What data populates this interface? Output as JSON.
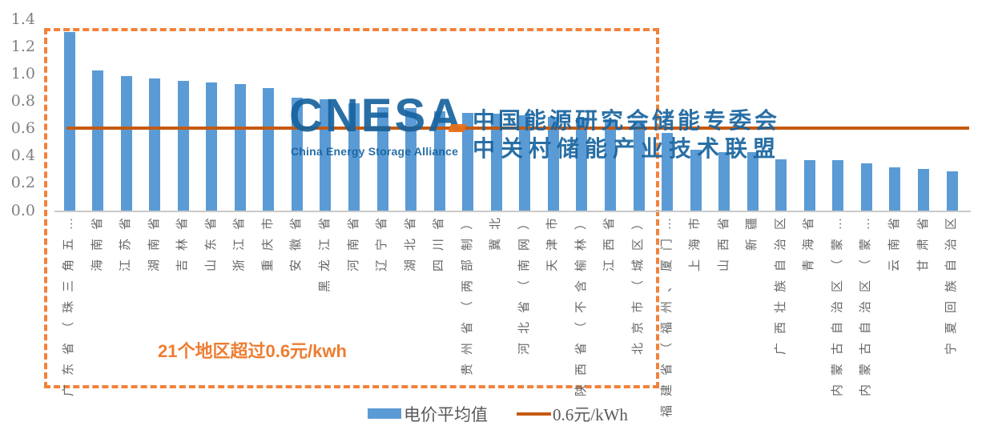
{
  "chart_data": {
    "type": "bar",
    "title": "",
    "xlabel": "",
    "ylabel": "",
    "ylim": [
      0,
      1.4
    ],
    "yticks": [
      0.0,
      0.2,
      0.4,
      0.6,
      0.8,
      1.0,
      1.2,
      1.4
    ],
    "grid": false,
    "legend_position": "bottom",
    "bar_color": "#5B9BD5",
    "categories": [
      "广东省（珠三角五…",
      "海南省",
      "江苏省",
      "湖南省",
      "吉林省",
      "山东省",
      "浙江省",
      "重庆市",
      "安徽省",
      "黑龙江省",
      "河南省",
      "辽宁省",
      "湖北省",
      "四川省",
      "贵州省（两部制）",
      "冀北",
      "河北省（南网）",
      "天津市",
      "陕西省（不含榆林）",
      "江西省",
      "北京市（城区）",
      "福建省（福州、厦门…",
      "上海市",
      "山西省",
      "新疆",
      "广西壮族自治区",
      "青海省",
      "内蒙古自治区（蒙…",
      "内蒙古自治区（蒙…",
      "云南省",
      "甘肃省",
      "宁夏回族自治区"
    ],
    "values": [
      1.31,
      1.03,
      0.99,
      0.97,
      0.95,
      0.94,
      0.93,
      0.9,
      0.83,
      0.82,
      0.79,
      0.76,
      0.75,
      0.73,
      0.72,
      0.71,
      0.7,
      0.69,
      0.68,
      0.67,
      0.65,
      0.57,
      0.45,
      0.43,
      0.43,
      0.38,
      0.37,
      0.37,
      0.35,
      0.32,
      0.31,
      0.29
    ],
    "series_name": "电价平均值",
    "reference_line": {
      "value": 0.6,
      "label": "0.6元/kWh",
      "color": "#C55A11"
    },
    "highlight_box": {
      "first_n_bars": 21,
      "style": "dashed",
      "color": "#F2823C",
      "note": "21个地区超过0.6元/kwh"
    }
  },
  "annotation": {
    "text": "21个地区超过0.6元/kwh",
    "color": "#ED7D31"
  },
  "legend": {
    "items": [
      {
        "label": "电价平均值",
        "swatch": "bar",
        "color": "#5B9BD5"
      },
      {
        "label": "0.6元/kWh",
        "swatch": "line",
        "color": "#C55A11"
      }
    ]
  },
  "watermark": {
    "logo": "CNESA",
    "logo_sub": "China Energy Storage Alliance",
    "cn_line1": "中国能源研究会储能专委会",
    "cn_line2": "中关村储能产业技术联盟"
  },
  "colors": {
    "bar": "#5B9BD5",
    "reference_line": "#C55A11",
    "dashed_box": "#F2823C",
    "annotation": "#ED7D31",
    "watermark": "#17639E",
    "tick_text": "#7F7F7F",
    "category_text": "#666666",
    "axis_line": "#C9C9C9"
  }
}
